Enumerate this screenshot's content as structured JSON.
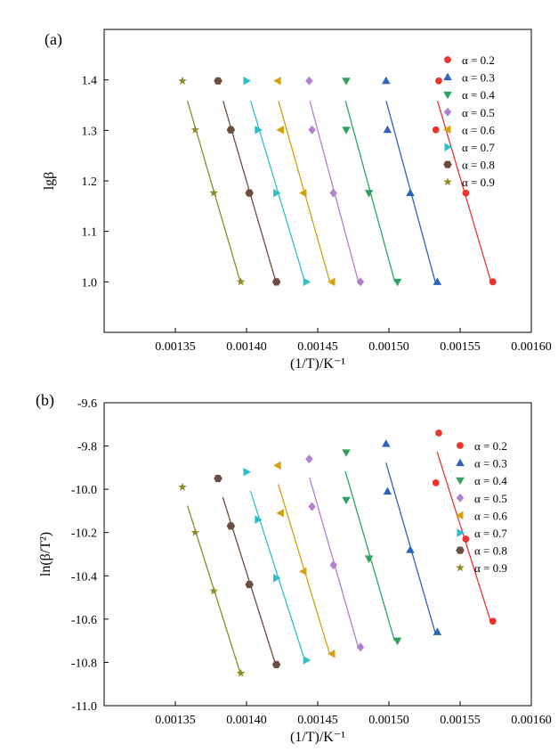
{
  "figure": {
    "colors": {
      "alpha_0.2": "#e8352e",
      "alpha_0.3": "#2f62b8",
      "alpha_0.4": "#2fa35e",
      "alpha_0.5": "#b27fd0",
      "alpha_0.6": "#d5a20f",
      "alpha_0.7": "#2ebfca",
      "alpha_0.8": "#6e4c3f",
      "alpha_0.9": "#8f8a26"
    }
  },
  "chart_data": [
    {
      "type": "scatter",
      "panel_label": "(a)",
      "title": "",
      "xlabel": "(1/T)/K⁻¹",
      "ylabel": "lgβ",
      "xlim": [
        0.0013,
        0.0016
      ],
      "ylim": [
        0.9,
        1.5
      ],
      "x_ticks": [
        "0.00135",
        "0.00140",
        "0.00145",
        "0.00150",
        "0.00155",
        "0.00160"
      ],
      "y_ticks": [
        "1.0",
        "1.1",
        "1.2",
        "1.3",
        "1.4"
      ],
      "grid": false,
      "legend_position": "top-right",
      "fit_lines": true,
      "series": [
        {
          "name": "α = 0.2",
          "marker": "circle",
          "x": [
            0.001573,
            0.001554,
            0.001533,
            0.001535
          ],
          "y": [
            1.0,
            1.176,
            1.301,
            1.398
          ]
        },
        {
          "name": "α = 0.3",
          "marker": "triangle-up",
          "x": [
            0.001534,
            0.001515,
            0.001499,
            0.001498
          ],
          "y": [
            1.0,
            1.176,
            1.301,
            1.398
          ]
        },
        {
          "name": "α = 0.4",
          "marker": "triangle-down",
          "x": [
            0.001506,
            0.001486,
            0.00147,
            0.00147
          ],
          "y": [
            1.0,
            1.176,
            1.301,
            1.398
          ]
        },
        {
          "name": "α = 0.5",
          "marker": "diamond",
          "x": [
            0.00148,
            0.001461,
            0.001446,
            0.001444
          ],
          "y": [
            1.0,
            1.176,
            1.301,
            1.398
          ]
        },
        {
          "name": "α = 0.6",
          "marker": "triangle-left",
          "x": [
            0.00146,
            0.00144,
            0.001424,
            0.001422
          ],
          "y": [
            1.0,
            1.176,
            1.301,
            1.398
          ]
        },
        {
          "name": "α = 0.7",
          "marker": "triangle-right",
          "x": [
            0.001442,
            0.001421,
            0.001408,
            0.0014
          ],
          "y": [
            1.0,
            1.176,
            1.301,
            1.398
          ]
        },
        {
          "name": "α = 0.8",
          "marker": "hexagon",
          "x": [
            0.001421,
            0.001402,
            0.001389,
            0.00138
          ],
          "y": [
            1.0,
            1.176,
            1.301,
            1.398
          ]
        },
        {
          "name": "α = 0.9",
          "marker": "star",
          "x": [
            0.001396,
            0.001377,
            0.001364,
            0.001355
          ],
          "y": [
            1.0,
            1.176,
            1.301,
            1.398
          ]
        }
      ]
    },
    {
      "type": "scatter",
      "panel_label": "(b)",
      "title": "",
      "xlabel": "(1/T)/K⁻¹",
      "ylabel": "ln(β/T²)",
      "xlim": [
        0.0013,
        0.0016
      ],
      "ylim": [
        -11.0,
        -9.6
      ],
      "x_ticks": [
        "0.00135",
        "0.00140",
        "0.00145",
        "0.00150",
        "0.00155",
        "0.00160"
      ],
      "y_ticks": [
        "-9.6",
        "-9.8",
        "-10.0",
        "-10.2",
        "-10.4",
        "-10.6",
        "-10.8",
        "-11.0"
      ],
      "grid": false,
      "legend_position": "top-right",
      "fit_lines": true,
      "series": [
        {
          "name": "α = 0.2",
          "marker": "circle",
          "x": [
            0.001573,
            0.001554,
            0.001533,
            0.001535
          ],
          "y": [
            -10.61,
            -10.23,
            -9.97,
            -9.74
          ]
        },
        {
          "name": "α = 0.3",
          "marker": "triangle-up",
          "x": [
            0.001534,
            0.001515,
            0.001499,
            0.001498
          ],
          "y": [
            -10.66,
            -10.28,
            -10.01,
            -9.79
          ]
        },
        {
          "name": "α = 0.4",
          "marker": "triangle-down",
          "x": [
            0.001506,
            0.001486,
            0.00147,
            0.00147
          ],
          "y": [
            -10.7,
            -10.32,
            -10.05,
            -9.83
          ]
        },
        {
          "name": "α = 0.5",
          "marker": "diamond",
          "x": [
            0.00148,
            0.001461,
            0.001446,
            0.001444
          ],
          "y": [
            -10.73,
            -10.35,
            -10.08,
            -9.86
          ]
        },
        {
          "name": "α = 0.6",
          "marker": "triangle-left",
          "x": [
            0.00146,
            0.00144,
            0.001424,
            0.001422
          ],
          "y": [
            -10.76,
            -10.38,
            -10.11,
            -9.89
          ]
        },
        {
          "name": "α = 0.7",
          "marker": "triangle-right",
          "x": [
            0.001442,
            0.001421,
            0.001408,
            0.0014
          ],
          "y": [
            -10.79,
            -10.41,
            -10.14,
            -9.92
          ]
        },
        {
          "name": "α = 0.8",
          "marker": "hexagon",
          "x": [
            0.001421,
            0.001402,
            0.001389,
            0.00138
          ],
          "y": [
            -10.81,
            -10.44,
            -10.17,
            -9.95
          ]
        },
        {
          "name": "α = 0.9",
          "marker": "star",
          "x": [
            0.001396,
            0.001377,
            0.001364,
            0.001355
          ],
          "y": [
            -10.85,
            -10.47,
            -10.2,
            -9.99
          ]
        }
      ]
    }
  ]
}
